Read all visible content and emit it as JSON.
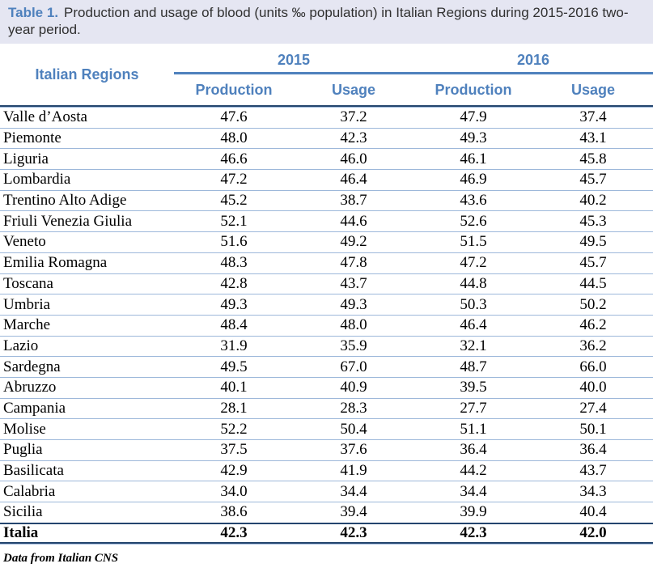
{
  "caption": {
    "label": "Table 1.",
    "text": "Production and usage of blood (units ‰ population) in Italian Regions during 2015-2016 two-year period."
  },
  "header": {
    "region_column": "Italian Regions",
    "year_groups": [
      {
        "year": "2015",
        "columns": [
          "Production",
          "Usage"
        ]
      },
      {
        "year": "2016",
        "columns": [
          "Production",
          "Usage"
        ]
      }
    ]
  },
  "rows": [
    {
      "region": "Valle d’Aosta",
      "values": [
        "47.6",
        "37.2",
        "47.9",
        "37.4"
      ]
    },
    {
      "region": "Piemonte",
      "values": [
        "48.0",
        "42.3",
        "49.3",
        "43.1"
      ]
    },
    {
      "region": "Liguria",
      "values": [
        "46.6",
        "46.0",
        "46.1",
        "45.8"
      ]
    },
    {
      "region": "Lombardia",
      "values": [
        "47.2",
        "46.4",
        "46.9",
        "45.7"
      ]
    },
    {
      "region": "Trentino Alto Adige",
      "values": [
        "45.2",
        "38.7",
        "43.6",
        "40.2"
      ]
    },
    {
      "region": "Friuli Venezia Giulia",
      "values": [
        "52.1",
        "44.6",
        "52.6",
        "45.3"
      ]
    },
    {
      "region": "Veneto",
      "values": [
        "51.6",
        "49.2",
        "51.5",
        "49.5"
      ]
    },
    {
      "region": "Emilia Romagna",
      "values": [
        "48.3",
        "47.8",
        "47.2",
        "45.7"
      ]
    },
    {
      "region": "Toscana",
      "values": [
        "42.8",
        "43.7",
        "44.8",
        "44.5"
      ]
    },
    {
      "region": "Umbria",
      "values": [
        "49.3",
        "49.3",
        "50.3",
        "50.2"
      ]
    },
    {
      "region": "Marche",
      "values": [
        "48.4",
        "48.0",
        "46.4",
        "46.2"
      ]
    },
    {
      "region": "Lazio",
      "values": [
        "31.9",
        "35.9",
        "32.1",
        "36.2"
      ]
    },
    {
      "region": "Sardegna",
      "values": [
        "49.5",
        "67.0",
        "48.7",
        "66.0"
      ]
    },
    {
      "region": "Abruzzo",
      "values": [
        "40.1",
        "40.9",
        "39.5",
        "40.0"
      ]
    },
    {
      "region": "Campania",
      "values": [
        "28.1",
        "28.3",
        "27.7",
        "27.4"
      ]
    },
    {
      "region": "Molise",
      "values": [
        "52.2",
        "50.4",
        "51.1",
        "50.1"
      ]
    },
    {
      "region": "Puglia",
      "values": [
        "37.5",
        "37.6",
        "36.4",
        "36.4"
      ]
    },
    {
      "region": "Basilicata",
      "values": [
        "42.9",
        "41.9",
        "44.2",
        "43.7"
      ]
    },
    {
      "region": "Calabria",
      "values": [
        "34.0",
        "34.4",
        "34.4",
        "34.3"
      ]
    },
    {
      "region": "Sicilia",
      "values": [
        "38.6",
        "39.4",
        "39.9",
        "40.4"
      ]
    }
  ],
  "total_row": {
    "region": "Italia",
    "values": [
      "42.3",
      "42.3",
      "42.3",
      "42.0"
    ]
  },
  "footnote": "Data from Italian CNS",
  "colors": {
    "accent_blue": "#4f81bd",
    "caption_bg": "#e5e6f2",
    "dark_line": "#24456e",
    "light_line": "#9db8da",
    "caption_text": "#303030"
  }
}
